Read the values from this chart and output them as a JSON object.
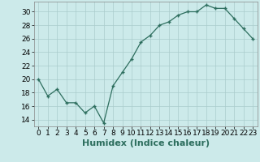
{
  "x": [
    0,
    1,
    2,
    3,
    4,
    5,
    6,
    7,
    8,
    9,
    10,
    11,
    12,
    13,
    14,
    15,
    16,
    17,
    18,
    19,
    20,
    21,
    22,
    23
  ],
  "y": [
    20.0,
    17.5,
    18.5,
    16.5,
    16.5,
    15.0,
    16.0,
    13.5,
    19.0,
    21.0,
    23.0,
    25.5,
    26.5,
    28.0,
    28.5,
    29.5,
    30.0,
    30.0,
    31.0,
    30.5,
    30.5,
    29.0,
    27.5,
    26.0
  ],
  "xlabel": "Humidex (Indice chaleur)",
  "ylim": [
    13,
    31.5
  ],
  "xlim": [
    -0.5,
    23.5
  ],
  "yticks": [
    14,
    16,
    18,
    20,
    22,
    24,
    26,
    28,
    30
  ],
  "xticks": [
    0,
    1,
    2,
    3,
    4,
    5,
    6,
    7,
    8,
    9,
    10,
    11,
    12,
    13,
    14,
    15,
    16,
    17,
    18,
    19,
    20,
    21,
    22,
    23
  ],
  "line_color": "#2d6e5e",
  "marker": "+",
  "bg_color": "#cceaea",
  "grid_color": "#aacccc",
  "xlabel_fontsize": 8,
  "tick_fontsize": 6.5
}
